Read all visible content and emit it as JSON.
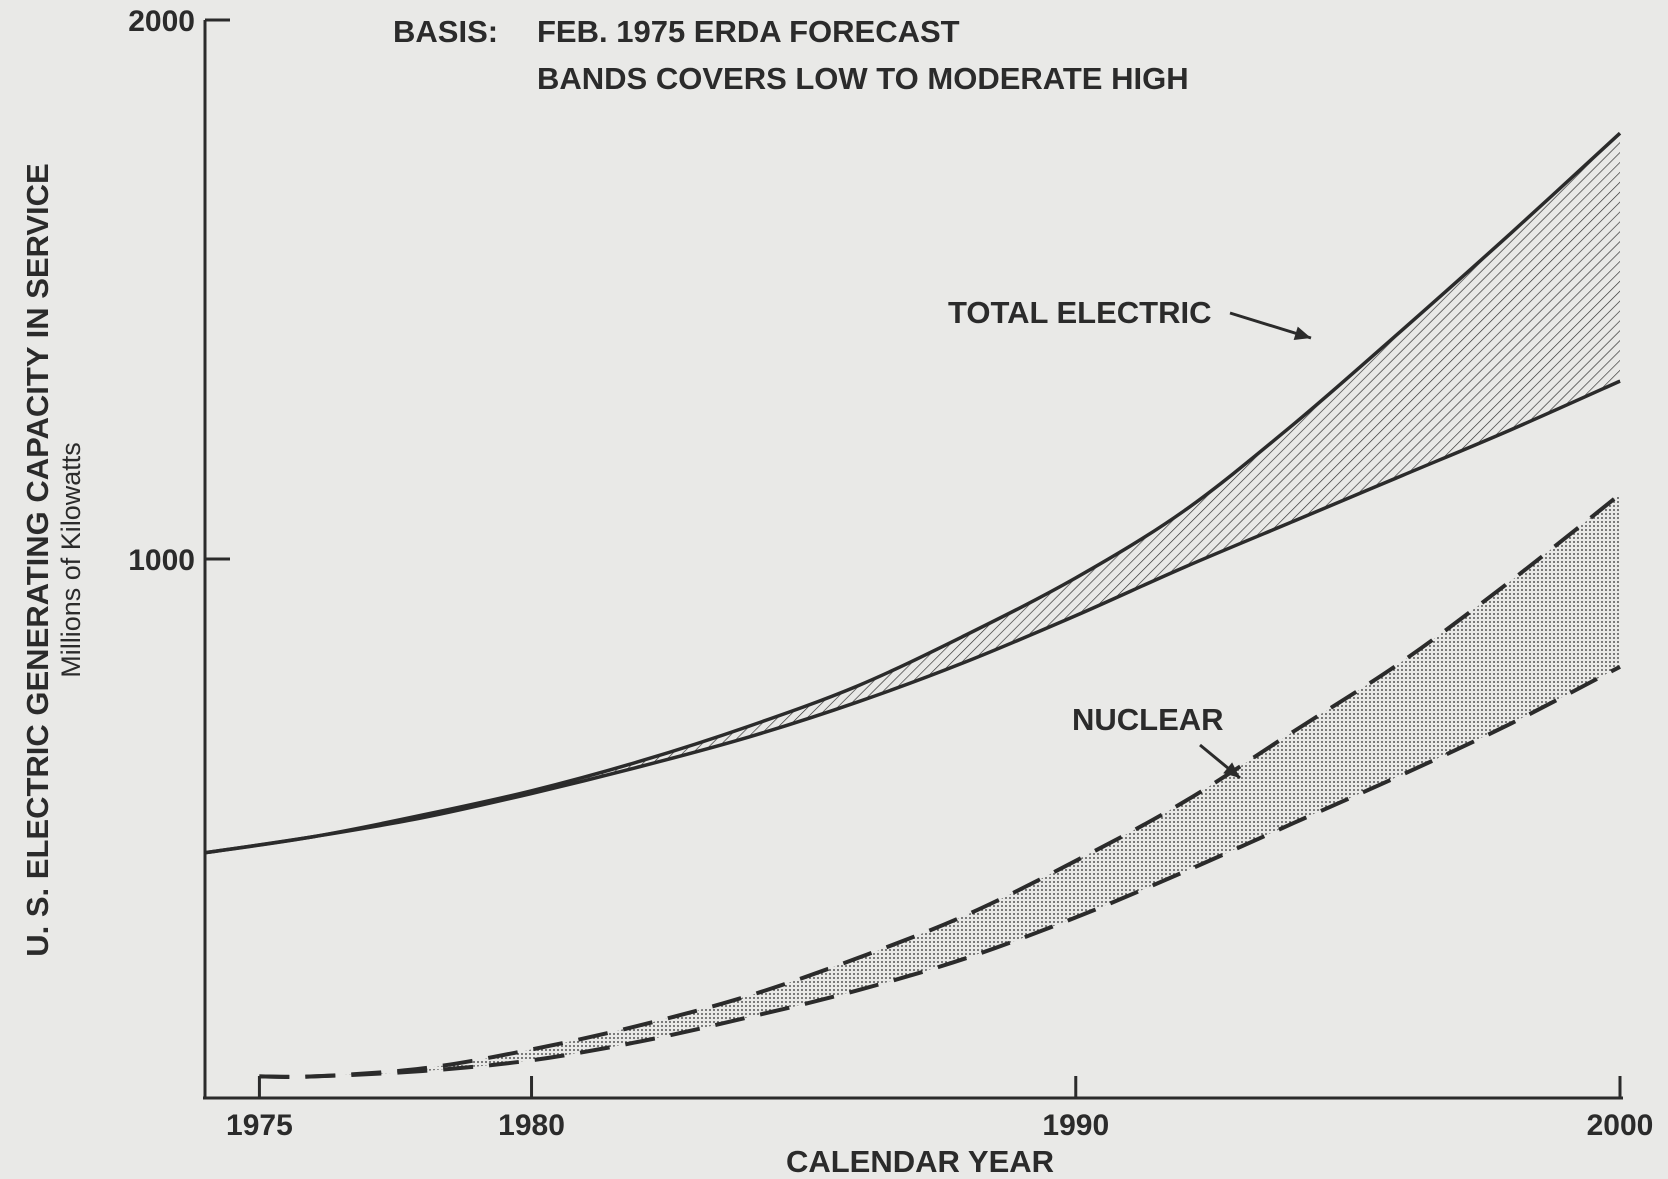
{
  "chart_data": {
    "type": "area",
    "title": "",
    "notes": {
      "basis_prefix": "BASIS:",
      "basis_text": "FEB. 1975 ERDA FORECAST",
      "band_text": "BANDS COVERS LOW TO MODERATE HIGH"
    },
    "xlabel": "CALENDAR YEAR",
    "ylabel": "U. S. ELECTRIC GENERATING CAPACITY IN SERVICE",
    "ylabel_units": "Millions of Kilowatts",
    "xlim": [
      1974,
      2000
    ],
    "ylim": [
      0,
      2000
    ],
    "x_ticks": [
      1975,
      1980,
      1990,
      2000
    ],
    "x_tick_labels": [
      "1975",
      "1980",
      "1990",
      "2000"
    ],
    "y_ticks": [
      1000,
      2000
    ],
    "y_tick_labels": [
      "1000",
      "2000"
    ],
    "grid": false,
    "series": [
      {
        "name": "TOTAL ELECTRIC",
        "style": "solid",
        "fill": "hatch",
        "x": [
          1974,
          1976,
          1978,
          1980,
          1982,
          1984,
          1986,
          1988,
          1990,
          1992,
          1994,
          1996,
          1998,
          2000
        ],
        "low": [
          455,
          485,
          520,
          565,
          615,
          670,
          735,
          810,
          895,
          985,
          1070,
          1155,
          1240,
          1330
        ],
        "high": [
          455,
          485,
          525,
          570,
          625,
          690,
          765,
          860,
          965,
          1090,
          1250,
          1425,
          1605,
          1790
        ]
      },
      {
        "name": "NUCLEAR",
        "style": "dashed",
        "fill": "dots",
        "x": [
          1975,
          1976,
          1978,
          1980,
          1982,
          1984,
          1986,
          1988,
          1990,
          1992,
          1994,
          1996,
          1998,
          2000
        ],
        "low": [
          40,
          40,
          50,
          70,
          105,
          150,
          200,
          260,
          335,
          420,
          510,
          600,
          695,
          800
        ],
        "high": [
          40,
          40,
          55,
          90,
          135,
          190,
          260,
          340,
          440,
          550,
          680,
          810,
          960,
          1120
        ]
      }
    ],
    "colors": {
      "ink": "#2b2b2b",
      "paper": "#e9e9e7"
    }
  }
}
